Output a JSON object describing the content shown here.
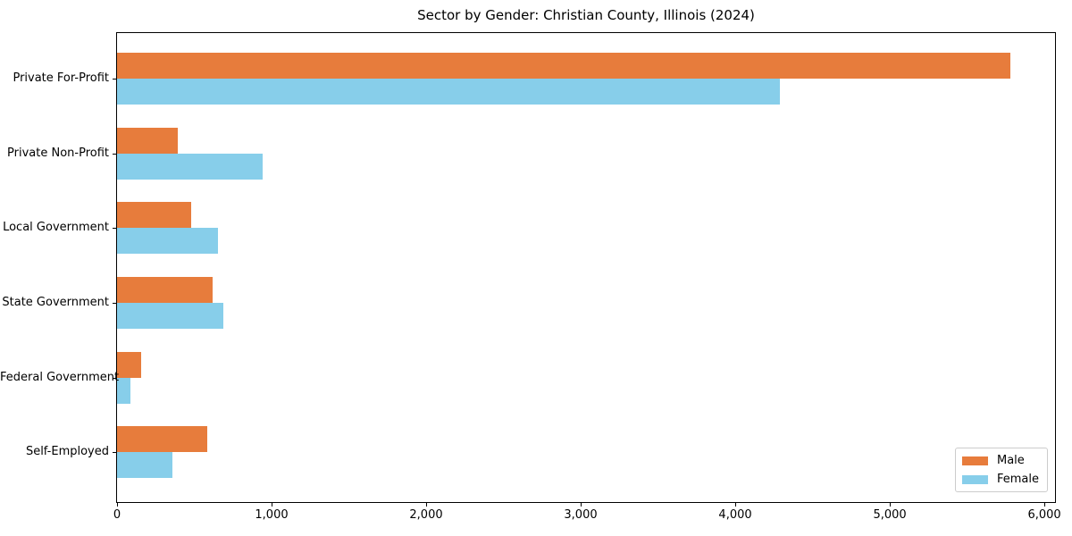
{
  "title": "Sector by Gender: Christian County, Illinois (2024)",
  "chart_data": {
    "type": "bar",
    "orientation": "horizontal",
    "title": "Sector by Gender: Christian County, Illinois (2024)",
    "categories": [
      "Private For-Profit",
      "Private Non-Profit",
      "Local Government",
      "State Government",
      "Federal Government",
      "Self-Employed"
    ],
    "series": [
      {
        "name": "Male",
        "color": "#e77c3c",
        "values": [
          5780,
          395,
          480,
          620,
          155,
          585
        ]
      },
      {
        "name": "Female",
        "color": "#87ceea",
        "values": [
          4290,
          940,
          655,
          685,
          85,
          360
        ]
      }
    ],
    "xlabel": "",
    "ylabel": "",
    "xlim": [
      0,
      6069
    ],
    "xticks": [
      0,
      1000,
      2000,
      3000,
      4000,
      5000,
      6000
    ],
    "xtick_labels": [
      "0",
      "1,000",
      "2,000",
      "3,000",
      "4,000",
      "5,000",
      "6,000"
    ],
    "legend": {
      "position": "lower right",
      "entries": [
        "Male",
        "Female"
      ]
    },
    "grid": false,
    "background": "#ffffff",
    "axis_color": "#000000"
  }
}
